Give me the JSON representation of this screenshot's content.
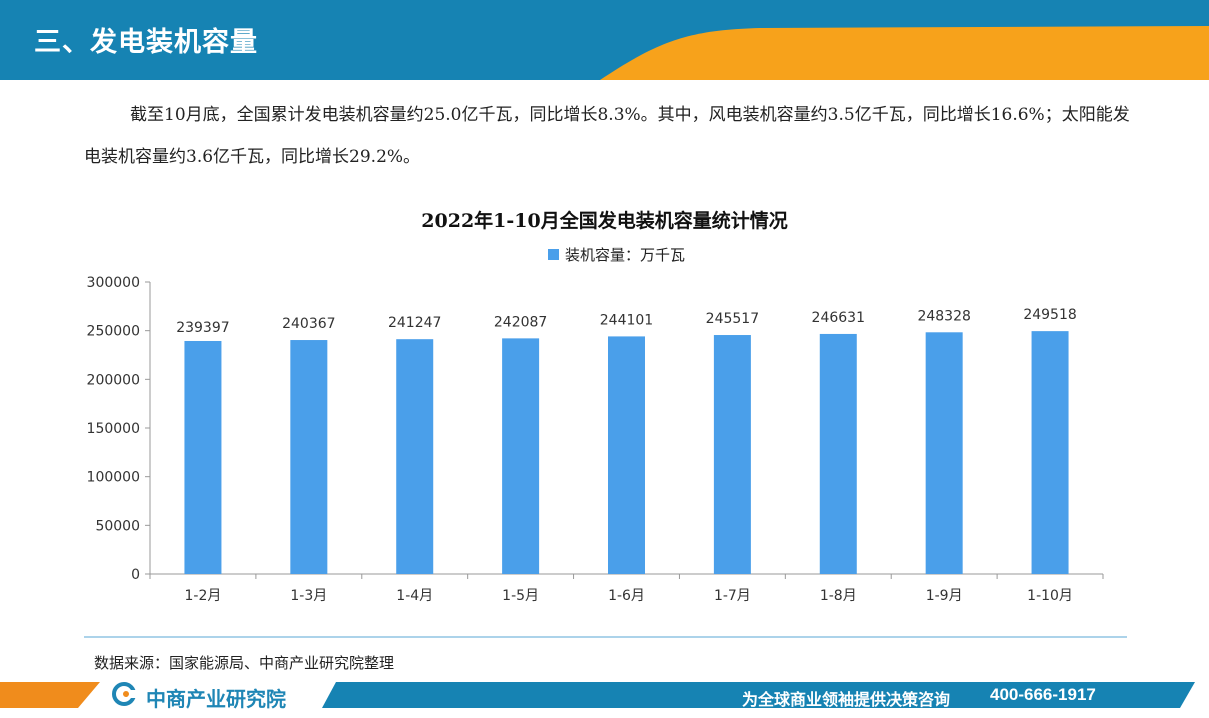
{
  "header": {
    "title": "三、发电装机容量",
    "colors": {
      "blue": "#1683b3",
      "orange": "#f7a21b"
    }
  },
  "body": {
    "paragraph": "截至10月底，全国累计发电装机容量约25.0亿千瓦，同比增长8.3%。其中，风电装机容量约3.5亿千瓦，同比增长16.6%；太阳能发电装机容量约3.6亿千瓦，同比增长29.2%。"
  },
  "chart_data": {
    "type": "bar",
    "title": "2022年1-10月全国发电装机容量统计情况",
    "categories": [
      "1-2月",
      "1-3月",
      "1-4月",
      "1-5月",
      "1-6月",
      "1-7月",
      "1-8月",
      "1-9月",
      "1-10月"
    ],
    "series": [
      {
        "name": "装机容量：万千瓦",
        "values": [
          239397,
          240367,
          241247,
          242087,
          244101,
          245517,
          246631,
          248328,
          249518
        ],
        "color": "#4a9fea"
      }
    ],
    "ylim": [
      0,
      300000
    ],
    "yticks": [
      0,
      50000,
      100000,
      150000,
      200000,
      250000,
      300000
    ],
    "grid": false,
    "legend": "top-center",
    "data_labels": true
  },
  "source": {
    "text": "数据来源：国家能源局、中商产业研究院整理"
  },
  "footer": {
    "brand": "中商产业研究院",
    "slogan": "为全球商业领袖提供决策咨询",
    "phone": "400-666-1917"
  }
}
